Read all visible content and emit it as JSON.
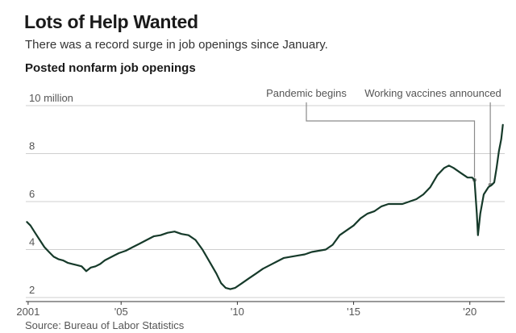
{
  "header": {
    "title": "Lots of Help Wanted",
    "subtitle": "There was a record surge in job openings since January.",
    "chart_label": "Posted nonfarm job openings"
  },
  "footer": {
    "source": "Source: Bureau of Labor Statistics"
  },
  "colors": {
    "line": "#163a2a",
    "grid": "#cfcfcf",
    "annotation": "#8a8a8a",
    "text": "#555555"
  },
  "chart_data": {
    "type": "line",
    "title": "Posted nonfarm job openings",
    "xlabel": "",
    "ylabel": "",
    "x_ticks": [
      {
        "value": 2001,
        "label": "2001"
      },
      {
        "value": 2005,
        "label": "'05"
      },
      {
        "value": 2010,
        "label": "'10"
      },
      {
        "value": 2015,
        "label": "'15"
      },
      {
        "value": 2020,
        "label": "'20"
      }
    ],
    "y_ticks": [
      {
        "value": 2,
        "label": "2"
      },
      {
        "value": 4,
        "label": "4"
      },
      {
        "value": 6,
        "label": "6"
      },
      {
        "value": 8,
        "label": "8"
      },
      {
        "value": 10,
        "label": "10 million"
      }
    ],
    "xlim": [
      2000.9,
      2021.5
    ],
    "ylim": [
      1.9,
      10.2
    ],
    "units": "million",
    "grid": true,
    "series": [
      {
        "values": [
          [
            2000.95,
            5.15
          ],
          [
            2001.1,
            5.0
          ],
          [
            2001.3,
            4.7
          ],
          [
            2001.5,
            4.4
          ],
          [
            2001.7,
            4.1
          ],
          [
            2001.9,
            3.9
          ],
          [
            2002.1,
            3.7
          ],
          [
            2002.3,
            3.6
          ],
          [
            2002.5,
            3.55
          ],
          [
            2002.7,
            3.45
          ],
          [
            2002.9,
            3.4
          ],
          [
            2003.1,
            3.35
          ],
          [
            2003.3,
            3.3
          ],
          [
            2003.5,
            3.1
          ],
          [
            2003.7,
            3.25
          ],
          [
            2003.9,
            3.3
          ],
          [
            2004.1,
            3.4
          ],
          [
            2004.3,
            3.55
          ],
          [
            2004.5,
            3.65
          ],
          [
            2004.7,
            3.75
          ],
          [
            2004.9,
            3.85
          ],
          [
            2005.2,
            3.95
          ],
          [
            2005.5,
            4.1
          ],
          [
            2005.8,
            4.25
          ],
          [
            2006.1,
            4.4
          ],
          [
            2006.4,
            4.55
          ],
          [
            2006.7,
            4.6
          ],
          [
            2007.0,
            4.7
          ],
          [
            2007.3,
            4.75
          ],
          [
            2007.6,
            4.65
          ],
          [
            2007.9,
            4.6
          ],
          [
            2008.2,
            4.4
          ],
          [
            2008.5,
            4.0
          ],
          [
            2008.8,
            3.5
          ],
          [
            2009.1,
            3.0
          ],
          [
            2009.3,
            2.6
          ],
          [
            2009.5,
            2.4
          ],
          [
            2009.7,
            2.35
          ],
          [
            2009.9,
            2.4
          ],
          [
            2010.2,
            2.6
          ],
          [
            2010.5,
            2.8
          ],
          [
            2010.8,
            3.0
          ],
          [
            2011.1,
            3.2
          ],
          [
            2011.4,
            3.35
          ],
          [
            2011.7,
            3.5
          ],
          [
            2012.0,
            3.65
          ],
          [
            2012.3,
            3.7
          ],
          [
            2012.6,
            3.75
          ],
          [
            2012.9,
            3.8
          ],
          [
            2013.2,
            3.9
          ],
          [
            2013.5,
            3.95
          ],
          [
            2013.8,
            4.0
          ],
          [
            2014.1,
            4.2
          ],
          [
            2014.4,
            4.6
          ],
          [
            2014.7,
            4.8
          ],
          [
            2015.0,
            5.0
          ],
          [
            2015.3,
            5.3
          ],
          [
            2015.6,
            5.5
          ],
          [
            2015.9,
            5.6
          ],
          [
            2016.2,
            5.8
          ],
          [
            2016.5,
            5.9
          ],
          [
            2016.8,
            5.9
          ],
          [
            2017.1,
            5.9
          ],
          [
            2017.4,
            6.0
          ],
          [
            2017.7,
            6.1
          ],
          [
            2018.0,
            6.3
          ],
          [
            2018.3,
            6.6
          ],
          [
            2018.6,
            7.1
          ],
          [
            2018.9,
            7.4
          ],
          [
            2019.1,
            7.5
          ],
          [
            2019.3,
            7.4
          ],
          [
            2019.6,
            7.2
          ],
          [
            2019.9,
            7.0
          ],
          [
            2020.1,
            7.0
          ],
          [
            2020.2,
            6.9
          ],
          [
            2020.3,
            5.5
          ],
          [
            2020.35,
            4.6
          ],
          [
            2020.45,
            5.5
          ],
          [
            2020.6,
            6.3
          ],
          [
            2020.8,
            6.6
          ],
          [
            2020.95,
            6.7
          ],
          [
            2021.05,
            6.8
          ],
          [
            2021.15,
            7.4
          ],
          [
            2021.25,
            8.1
          ],
          [
            2021.35,
            8.6
          ],
          [
            2021.42,
            9.2
          ]
        ]
      }
    ],
    "annotations": [
      {
        "label": "Pandemic begins",
        "x": 2020.2
      },
      {
        "label": "Working vaccines announced",
        "x": 2020.88
      }
    ]
  }
}
